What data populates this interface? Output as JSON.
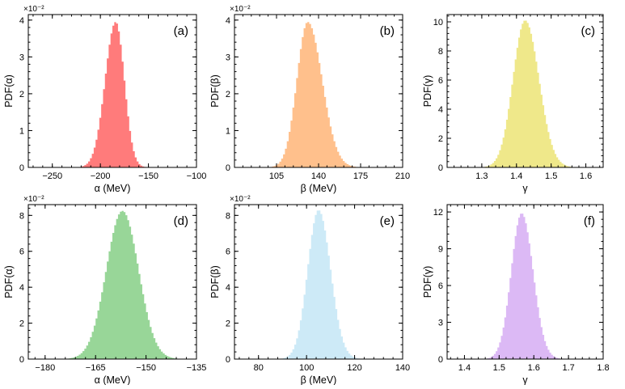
{
  "chart_data": [
    {
      "type": "area",
      "panel_label": "(a)",
      "xlabel": "α (MeV)",
      "ylabel": "PDF(α)",
      "scale_label": "×10⁻²",
      "color": "#ff7b7b",
      "xlim": [
        -275,
        -100
      ],
      "ylim": [
        0,
        4.15
      ],
      "xticks": [
        -250,
        -200,
        -150,
        -100
      ],
      "yticks": [
        0,
        1,
        2,
        3,
        4
      ],
      "peak_x": -184,
      "peak_y": 3.95,
      "sigma_left": 11,
      "sigma_right": 9
    },
    {
      "type": "area",
      "panel_label": "(b)",
      "xlabel": "β (MeV)",
      "ylabel": "PDF(β)",
      "scale_label": "×10⁻²",
      "color": "#ffc08c",
      "xlim": [
        70,
        210
      ],
      "ylim": [
        0,
        4.15
      ],
      "xticks": [
        105,
        140,
        175,
        210
      ],
      "yticks": [
        0,
        1,
        2,
        3,
        4
      ],
      "peak_x": 131,
      "peak_y": 3.95,
      "sigma_left": 9,
      "sigma_right": 12
    },
    {
      "type": "area",
      "panel_label": "(c)",
      "xlabel": "γ",
      "ylabel": "PDF(γ)",
      "scale_label": "",
      "color": "#efe88a",
      "xlim": [
        1.2,
        1.65
      ],
      "ylim": [
        0,
        10.5
      ],
      "xticks": [
        1.3,
        1.4,
        1.5,
        1.6
      ],
      "yticks": [
        0,
        2,
        4,
        6,
        8,
        10
      ],
      "peak_x": 1.425,
      "peak_y": 10.1,
      "sigma_left": 0.035,
      "sigma_right": 0.04
    },
    {
      "type": "area",
      "panel_label": "(d)",
      "xlabel": "α (MeV)",
      "ylabel": "PDF(α)",
      "scale_label": "×10⁻²",
      "color": "#98d698",
      "xlim": [
        -185,
        -135
      ],
      "ylim": [
        0,
        8.6
      ],
      "xticks": [
        -180,
        -165,
        -150,
        -135
      ],
      "yticks": [
        0,
        2,
        4,
        6,
        8
      ],
      "peak_x": -157,
      "peak_y": 8.25,
      "sigma_left": 4.8,
      "sigma_right": 4.8
    },
    {
      "type": "area",
      "panel_label": "(e)",
      "xlabel": "β (MeV)",
      "ylabel": "PDF(β)",
      "scale_label": "×10⁻²",
      "color": "#cdeaf7",
      "xlim": [
        70,
        140
      ],
      "ylim": [
        0,
        8.6
      ],
      "xticks": [
        80,
        100,
        120,
        140
      ],
      "yticks": [
        0,
        2,
        4,
        6,
        8
      ],
      "peak_x": 105,
      "peak_y": 8.3,
      "sigma_left": 4.5,
      "sigma_right": 5
    },
    {
      "type": "area",
      "panel_label": "(f)",
      "xlabel": "γ",
      "ylabel": "PDF(γ)",
      "scale_label": "",
      "color": "#dcb9f5",
      "xlim": [
        1.35,
        1.8
      ],
      "ylim": [
        0,
        12.6
      ],
      "xticks": [
        1.4,
        1.5,
        1.6,
        1.7,
        1.8
      ],
      "yticks": [
        0,
        3,
        6,
        9,
        12
      ],
      "peak_x": 1.565,
      "peak_y": 11.9,
      "sigma_left": 0.03,
      "sigma_right": 0.033
    }
  ]
}
